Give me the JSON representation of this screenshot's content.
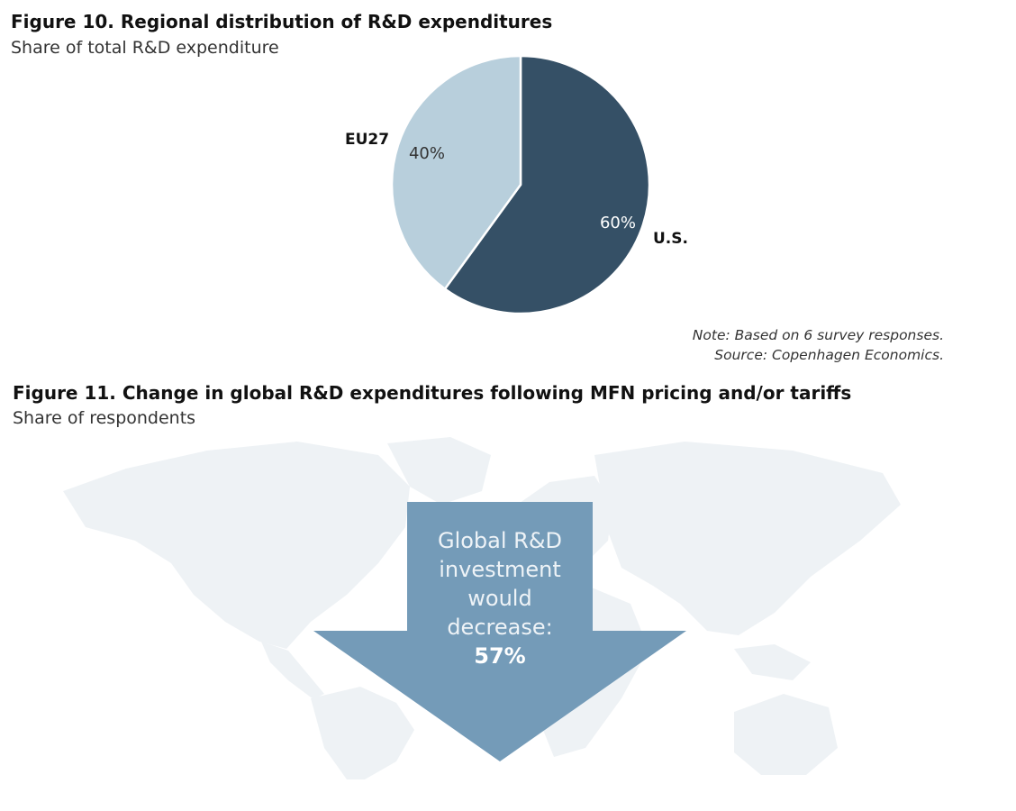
{
  "figure10": {
    "title": "Figure 10. Regional distribution of R&D expenditures",
    "subtitle": "Share of total R&D expenditure",
    "note": "Note: Based on 6 survey responses.",
    "source": "Source: Copenhagen Economics."
  },
  "chart_data": [
    {
      "type": "pie",
      "title": "Figure 10. Regional distribution of R&D expenditures",
      "subtitle": "Share of total R&D expenditure",
      "categories": [
        "U.S.",
        "EU27"
      ],
      "values": [
        60,
        40
      ],
      "value_labels": [
        "60%",
        "40%"
      ],
      "colors": [
        "#355066",
        "#b8cfdc"
      ]
    }
  ],
  "figure11": {
    "title": "Figure 11. Change in global R&D expenditures following MFN pricing and/or tariffs",
    "subtitle": "Share of respondents",
    "arrow_lines": [
      "Global R&D",
      "investment",
      "would",
      "decrease:"
    ],
    "arrow_value": "57%",
    "arrow_color": "#749bb8",
    "map_color": "#eef2f5"
  }
}
